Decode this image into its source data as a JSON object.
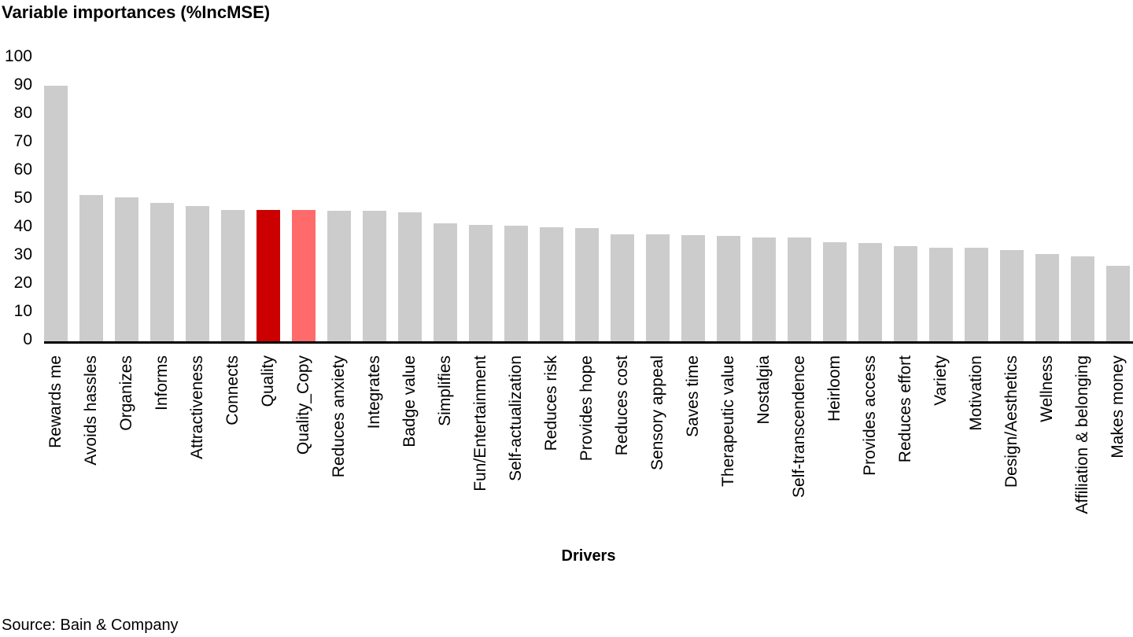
{
  "title": "Variable importances (%IncMSE)",
  "source": "Source: Bain & Company",
  "chart_data": {
    "type": "bar",
    "title": "Variable importances (%IncMSE)",
    "xlabel": "Drivers",
    "ylabel": "",
    "ylim": [
      0,
      100
    ],
    "yticks": [
      0,
      10,
      20,
      30,
      40,
      50,
      60,
      70,
      80,
      90,
      100
    ],
    "grid": false,
    "legend": "none",
    "bar_default_color": "#CCCCCC",
    "highlight_colors": {
      "Quality": "#CC0000",
      "Quality_Copy": "#FF6B6B"
    },
    "categories": [
      "Rewards me",
      "Avoids hassles",
      "Organizes",
      "Informs",
      "Attractiveness",
      "Connects",
      "Quality",
      "Quality_Copy",
      "Reduces anxiety",
      "Integrates",
      "Badge value",
      "Simplifies",
      "Fun/Entertainment",
      "Self-actualization",
      "Reduces risk",
      "Provides hope",
      "Reduces cost",
      "Sensory appeal",
      "Saves time",
      "Therapeutic value",
      "Nostalgia",
      "Self-transcendence",
      "Heirloom",
      "Provides access",
      "Reduces effort",
      "Variety",
      "Motivation",
      "Design/Aesthetics",
      "Wellness",
      "Affiliation & belonging",
      "Makes money"
    ],
    "values": [
      89.5,
      51.2,
      50.3,
      48.4,
      47.4,
      46.1,
      46.0,
      45.9,
      45.8,
      45.6,
      45.2,
      41.4,
      40.8,
      40.5,
      39.9,
      39.8,
      37.5,
      37.4,
      37.3,
      36.9,
      36.5,
      36.4,
      34.8,
      34.3,
      33.4,
      32.8,
      32.7,
      31.9,
      30.6,
      29.8,
      26.4
    ]
  }
}
